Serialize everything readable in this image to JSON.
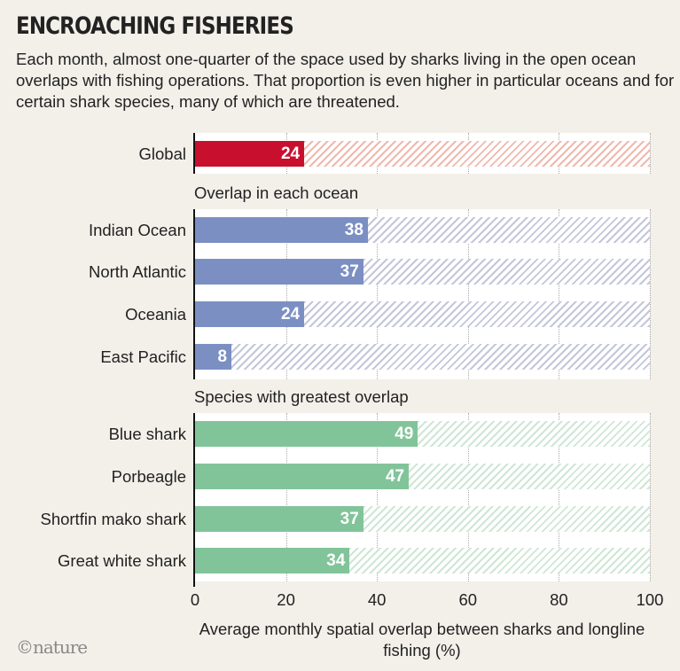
{
  "header": {
    "title": "ENCROACHING FISHERIES",
    "subtitle": "Each month, almost one-quarter of the space used by sharks living in the open ocean overlaps with fishing operations. That proportion is even higher in particular oceans and for certain shark species, many of which are threatened."
  },
  "chart_data": {
    "type": "bar",
    "orientation": "horizontal",
    "xlabel": "Average monthly spatial overlap between sharks and longline fishing (%)",
    "xlim": [
      0,
      100
    ],
    "xticks": [
      "0",
      "20",
      "40",
      "60",
      "80",
      "100"
    ],
    "groups": [
      {
        "heading": "",
        "color": "#c8102e",
        "hatch_color": "#f0b8ae",
        "categories": [
          "Global"
        ],
        "values": [
          24
        ]
      },
      {
        "heading": "Overlap in each ocean",
        "color": "#7b8fc3",
        "hatch_color": "#c4c6da",
        "categories": [
          "Indian Ocean",
          "North Atlantic",
          "Oceania",
          "East Pacific"
        ],
        "values": [
          38,
          37,
          24,
          8
        ]
      },
      {
        "heading": "Species with greatest overlap",
        "color": "#82c49a",
        "hatch_color": "#cfe6d5",
        "categories": [
          "Blue shark",
          "Porbeagle",
          "Shortfin mako shark",
          "Great white shark"
        ],
        "values": [
          49,
          47,
          37,
          34
        ]
      }
    ]
  },
  "footer": {
    "logo": "©nature"
  }
}
